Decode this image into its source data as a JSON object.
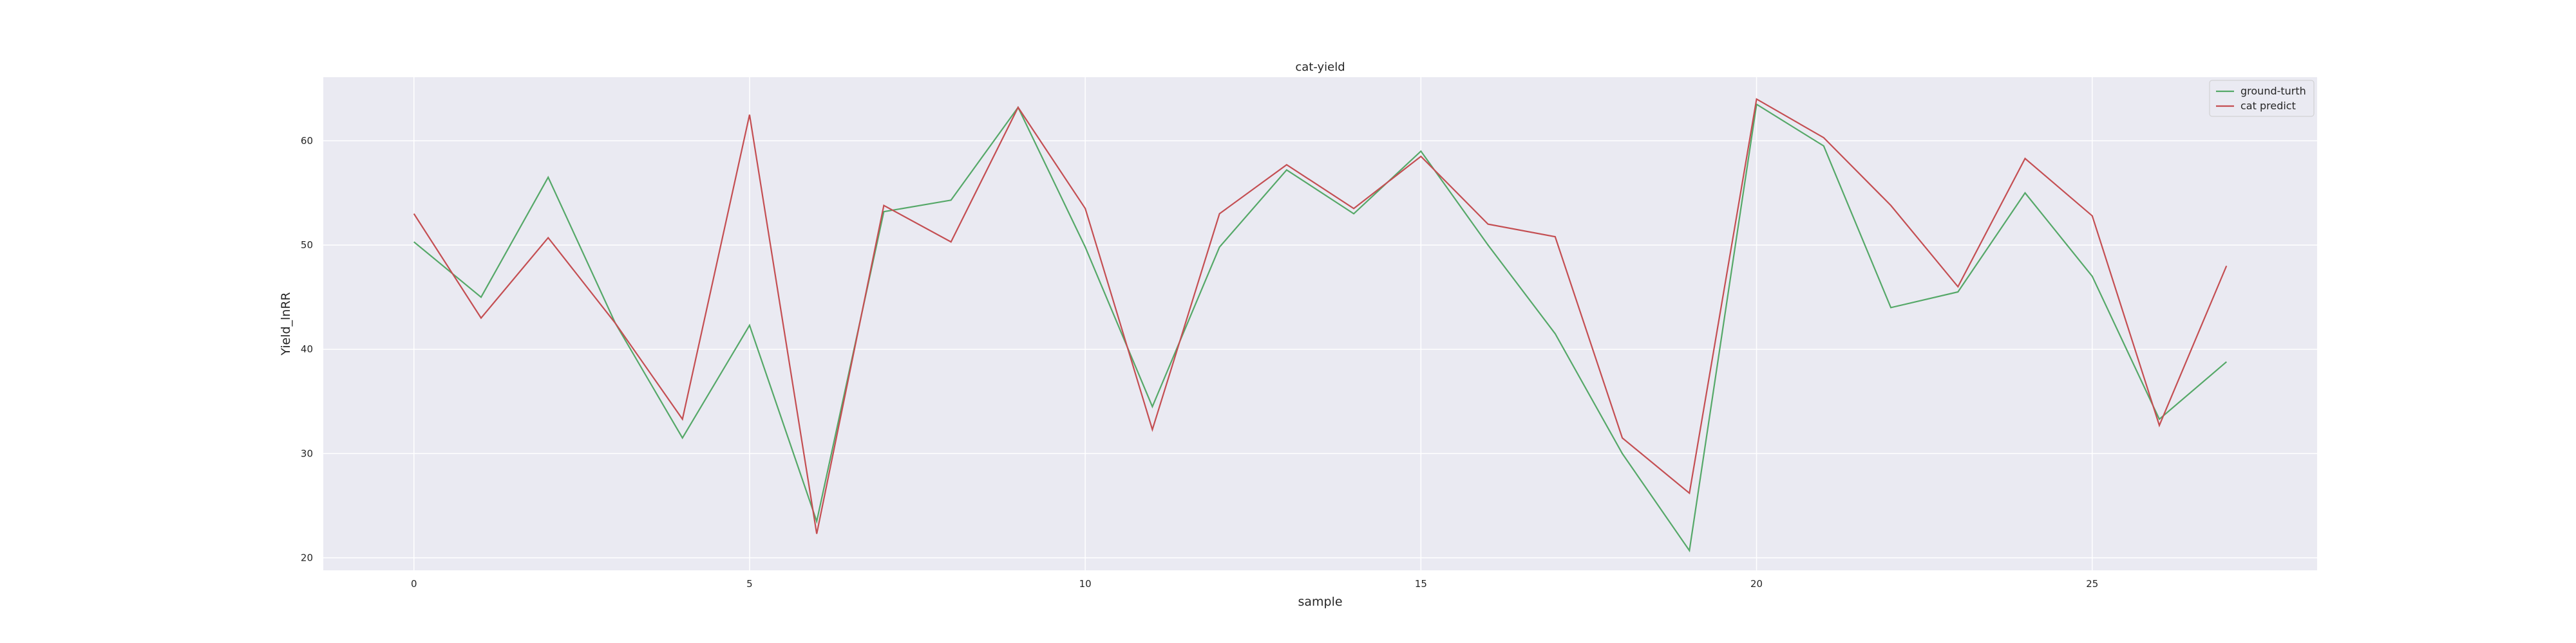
{
  "chart_data": {
    "type": "line",
    "title": "cat-yield",
    "xlabel": "sample",
    "ylabel": "Yield_lnRR",
    "x": [
      0,
      1,
      2,
      3,
      4,
      5,
      6,
      7,
      8,
      9,
      10,
      11,
      12,
      13,
      14,
      15,
      16,
      17,
      18,
      19,
      20,
      21,
      22,
      23,
      24,
      25,
      26,
      27
    ],
    "series": [
      {
        "name": "ground-turth",
        "color": "#55a868",
        "values": [
          50.3,
          45.0,
          56.5,
          42.5,
          31.5,
          42.3,
          23.5,
          53.2,
          54.3,
          63.2,
          49.8,
          34.5,
          49.8,
          57.2,
          53.0,
          59.0,
          50.0,
          41.5,
          30.0,
          20.7,
          63.5,
          59.5,
          44.0,
          45.5,
          55.0,
          47.0,
          33.3,
          38.8
        ]
      },
      {
        "name": "cat predict",
        "color": "#c44e52",
        "values": [
          53.0,
          43.0,
          50.7,
          42.5,
          33.3,
          62.5,
          22.3,
          53.8,
          50.3,
          63.2,
          53.5,
          32.3,
          53.0,
          57.7,
          53.5,
          58.5,
          52.0,
          50.8,
          31.5,
          26.2,
          64.0,
          60.3,
          53.8,
          46.0,
          58.3,
          52.8,
          32.7,
          48.0
        ]
      }
    ],
    "xlim": [
      -1.35,
      28.35
    ],
    "ylim": [
      18.8,
      66.1
    ],
    "xticks": [
      0,
      5,
      10,
      15,
      20,
      25
    ],
    "yticks": [
      20,
      30,
      40,
      50,
      60
    ],
    "grid": true,
    "legend_position": "top-right",
    "background": "#eaeaf2"
  }
}
